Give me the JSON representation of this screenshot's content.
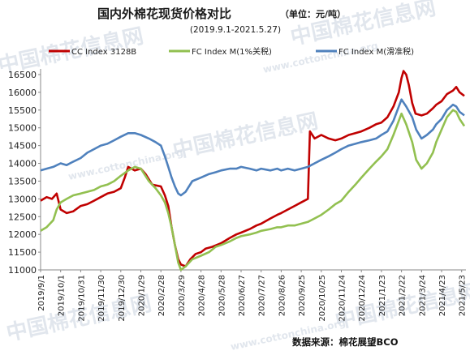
{
  "title": "国内外棉花现货价格对比",
  "unit": "（单位：元/吨）",
  "subtitle": "(2019.9.1-2021.5.27)",
  "source": "数据来源：棉花展望BCO",
  "watermark": {
    "brand": "中国棉花信息网",
    "url": "www.cottonchina.org"
  },
  "chart_data": {
    "type": "line",
    "title": "国内外棉花现货价格对比",
    "subtitle": "(2019.9.1-2021.5.27)",
    "ylim": [
      11000,
      16500
    ],
    "yticks": [
      11000,
      11500,
      12000,
      12500,
      13000,
      13500,
      14000,
      14500,
      15000,
      15500,
      16000,
      16500
    ],
    "x_tick_labels": [
      "2019/9/1",
      "2019/10/1",
      "2019/10/31",
      "2019/11/30",
      "2019/12/30",
      "2020/1/29",
      "2020/2/28",
      "2020/3/29",
      "2020/4/28",
      "2020/5/28",
      "2020/6/27",
      "2020/7/27",
      "2020/8/26",
      "2020/9/25",
      "2020/10/25",
      "2020/11/24",
      "2020/12/24",
      "2021/1/23",
      "2021/2/22",
      "2021/3/24",
      "2021/4/23",
      "2021/5/23"
    ],
    "grid": false,
    "legend_position": "top",
    "series": [
      {
        "name": "CC Index 3128B",
        "color": "#c00000",
        "points": [
          [
            "2019-09-01",
            12950
          ],
          [
            "2019-09-10",
            13050
          ],
          [
            "2019-09-18",
            13000
          ],
          [
            "2019-09-25",
            13150
          ],
          [
            "2019-10-01",
            12700
          ],
          [
            "2019-10-10",
            12600
          ],
          [
            "2019-10-20",
            12650
          ],
          [
            "2019-10-31",
            12800
          ],
          [
            "2019-11-10",
            12850
          ],
          [
            "2019-11-20",
            12950
          ],
          [
            "2019-11-30",
            13050
          ],
          [
            "2019-12-10",
            13150
          ],
          [
            "2019-12-20",
            13200
          ],
          [
            "2019-12-30",
            13300
          ],
          [
            "2020-01-05",
            13600
          ],
          [
            "2020-01-10",
            13900
          ],
          [
            "2020-01-15",
            13850
          ],
          [
            "2020-01-20",
            13800
          ],
          [
            "2020-01-29",
            13850
          ],
          [
            "2020-02-05",
            13700
          ],
          [
            "2020-02-15",
            13400
          ],
          [
            "2020-02-28",
            13350
          ],
          [
            "2020-03-05",
            13100
          ],
          [
            "2020-03-10",
            12800
          ],
          [
            "2020-03-15",
            12200
          ],
          [
            "2020-03-20",
            11700
          ],
          [
            "2020-03-25",
            11300
          ],
          [
            "2020-03-29",
            11150
          ],
          [
            "2020-04-05",
            11100
          ],
          [
            "2020-04-12",
            11300
          ],
          [
            "2020-04-20",
            11450
          ],
          [
            "2020-04-28",
            11500
          ],
          [
            "2020-05-05",
            11600
          ],
          [
            "2020-05-15",
            11650
          ],
          [
            "2020-05-28",
            11750
          ],
          [
            "2020-06-10",
            11900
          ],
          [
            "2020-06-20",
            12000
          ],
          [
            "2020-06-27",
            12050
          ],
          [
            "2020-07-10",
            12150
          ],
          [
            "2020-07-20",
            12250
          ],
          [
            "2020-07-27",
            12300
          ],
          [
            "2020-08-10",
            12450
          ],
          [
            "2020-08-20",
            12550
          ],
          [
            "2020-08-26",
            12600
          ],
          [
            "2020-09-05",
            12700
          ],
          [
            "2020-09-15",
            12800
          ],
          [
            "2020-09-25",
            12900
          ],
          [
            "2020-10-05",
            13000
          ],
          [
            "2020-10-08",
            14900
          ],
          [
            "2020-10-15",
            14700
          ],
          [
            "2020-10-25",
            14800
          ],
          [
            "2020-11-05",
            14700
          ],
          [
            "2020-11-15",
            14650
          ],
          [
            "2020-11-24",
            14700
          ],
          [
            "2020-12-05",
            14800
          ],
          [
            "2020-12-15",
            14850
          ],
          [
            "2020-12-24",
            14900
          ],
          [
            "2021-01-05",
            15000
          ],
          [
            "2021-01-15",
            15100
          ],
          [
            "2021-01-23",
            15150
          ],
          [
            "2021-02-01",
            15300
          ],
          [
            "2021-02-10",
            15600
          ],
          [
            "2021-02-18",
            16000
          ],
          [
            "2021-02-22",
            16400
          ],
          [
            "2021-02-25",
            16600
          ],
          [
            "2021-03-01",
            16500
          ],
          [
            "2021-03-05",
            16200
          ],
          [
            "2021-03-10",
            15700
          ],
          [
            "2021-03-15",
            15400
          ],
          [
            "2021-03-24",
            15350
          ],
          [
            "2021-04-01",
            15400
          ],
          [
            "2021-04-10",
            15550
          ],
          [
            "2021-04-15",
            15650
          ],
          [
            "2021-04-23",
            15750
          ],
          [
            "2021-05-01",
            15950
          ],
          [
            "2021-05-10",
            16050
          ],
          [
            "2021-05-15",
            16150
          ],
          [
            "2021-05-20",
            16000
          ],
          [
            "2021-05-27",
            15900
          ]
        ]
      },
      {
        "name": "FC Index M(1%关税)",
        "color": "#92c050",
        "points": [
          [
            "2019-09-01",
            12100
          ],
          [
            "2019-09-10",
            12200
          ],
          [
            "2019-09-20",
            12400
          ],
          [
            "2019-09-25",
            12700
          ],
          [
            "2019-10-01",
            12900
          ],
          [
            "2019-10-10",
            13000
          ],
          [
            "2019-10-20",
            13100
          ],
          [
            "2019-10-31",
            13150
          ],
          [
            "2019-11-10",
            13200
          ],
          [
            "2019-11-20",
            13250
          ],
          [
            "2019-11-30",
            13350
          ],
          [
            "2019-12-10",
            13400
          ],
          [
            "2019-12-20",
            13500
          ],
          [
            "2019-12-30",
            13650
          ],
          [
            "2020-01-10",
            13800
          ],
          [
            "2020-01-20",
            13900
          ],
          [
            "2020-01-29",
            13850
          ],
          [
            "2020-02-10",
            13500
          ],
          [
            "2020-02-20",
            13300
          ],
          [
            "2020-02-28",
            13100
          ],
          [
            "2020-03-05",
            12900
          ],
          [
            "2020-03-10",
            12600
          ],
          [
            "2020-03-15",
            12200
          ],
          [
            "2020-03-20",
            11700
          ],
          [
            "2020-03-25",
            11200
          ],
          [
            "2020-03-29",
            11000
          ],
          [
            "2020-04-05",
            11100
          ],
          [
            "2020-04-15",
            11300
          ],
          [
            "2020-04-28",
            11400
          ],
          [
            "2020-05-10",
            11500
          ],
          [
            "2020-05-20",
            11650
          ],
          [
            "2020-05-28",
            11700
          ],
          [
            "2020-06-10",
            11800
          ],
          [
            "2020-06-20",
            11900
          ],
          [
            "2020-06-27",
            11950
          ],
          [
            "2020-07-10",
            12000
          ],
          [
            "2020-07-20",
            12050
          ],
          [
            "2020-07-27",
            12100
          ],
          [
            "2020-08-10",
            12150
          ],
          [
            "2020-08-20",
            12200
          ],
          [
            "2020-08-26",
            12200
          ],
          [
            "2020-09-05",
            12250
          ],
          [
            "2020-09-15",
            12250
          ],
          [
            "2020-09-25",
            12300
          ],
          [
            "2020-10-05",
            12350
          ],
          [
            "2020-10-15",
            12450
          ],
          [
            "2020-10-25",
            12550
          ],
          [
            "2020-11-05",
            12700
          ],
          [
            "2020-11-15",
            12850
          ],
          [
            "2020-11-24",
            12950
          ],
          [
            "2020-12-05",
            13200
          ],
          [
            "2020-12-15",
            13400
          ],
          [
            "2020-12-24",
            13600
          ],
          [
            "2021-01-05",
            13850
          ],
          [
            "2021-01-15",
            14050
          ],
          [
            "2021-01-23",
            14200
          ],
          [
            "2021-02-01",
            14400
          ],
          [
            "2021-02-10",
            14800
          ],
          [
            "2021-02-18",
            15200
          ],
          [
            "2021-02-22",
            15400
          ],
          [
            "2021-03-01",
            15100
          ],
          [
            "2021-03-10",
            14600
          ],
          [
            "2021-03-16",
            14100
          ],
          [
            "2021-03-24",
            13850
          ],
          [
            "2021-04-01",
            14000
          ],
          [
            "2021-04-10",
            14300
          ],
          [
            "2021-04-15",
            14600
          ],
          [
            "2021-04-23",
            14950
          ],
          [
            "2021-05-01",
            15300
          ],
          [
            "2021-05-10",
            15500
          ],
          [
            "2021-05-15",
            15450
          ],
          [
            "2021-05-20",
            15250
          ],
          [
            "2021-05-27",
            15050
          ]
        ]
      },
      {
        "name": "FC Index M(滑准税)",
        "color": "#4f81bd",
        "points": [
          [
            "2019-09-01",
            13800
          ],
          [
            "2019-09-10",
            13850
          ],
          [
            "2019-09-20",
            13900
          ],
          [
            "2019-10-01",
            14000
          ],
          [
            "2019-10-10",
            13950
          ],
          [
            "2019-10-20",
            14050
          ],
          [
            "2019-10-31",
            14150
          ],
          [
            "2019-11-10",
            14300
          ],
          [
            "2019-11-20",
            14400
          ],
          [
            "2019-11-30",
            14500
          ],
          [
            "2019-12-10",
            14550
          ],
          [
            "2019-12-20",
            14650
          ],
          [
            "2019-12-30",
            14750
          ],
          [
            "2020-01-10",
            14850
          ],
          [
            "2020-01-20",
            14850
          ],
          [
            "2020-01-29",
            14800
          ],
          [
            "2020-02-10",
            14700
          ],
          [
            "2020-02-20",
            14600
          ],
          [
            "2020-02-28",
            14500
          ],
          [
            "2020-03-05",
            14200
          ],
          [
            "2020-03-10",
            13900
          ],
          [
            "2020-03-15",
            13600
          ],
          [
            "2020-03-20",
            13350
          ],
          [
            "2020-03-25",
            13150
          ],
          [
            "2020-03-29",
            13100
          ],
          [
            "2020-04-05",
            13200
          ],
          [
            "2020-04-15",
            13500
          ],
          [
            "2020-04-28",
            13600
          ],
          [
            "2020-05-10",
            13700
          ],
          [
            "2020-05-20",
            13750
          ],
          [
            "2020-05-28",
            13800
          ],
          [
            "2020-06-10",
            13850
          ],
          [
            "2020-06-20",
            13850
          ],
          [
            "2020-06-27",
            13900
          ],
          [
            "2020-07-10",
            13850
          ],
          [
            "2020-07-20",
            13800
          ],
          [
            "2020-07-27",
            13850
          ],
          [
            "2020-08-10",
            13800
          ],
          [
            "2020-08-20",
            13850
          ],
          [
            "2020-08-26",
            13800
          ],
          [
            "2020-09-05",
            13850
          ],
          [
            "2020-09-15",
            13800
          ],
          [
            "2020-09-25",
            13850
          ],
          [
            "2020-10-05",
            13900
          ],
          [
            "2020-10-15",
            14000
          ],
          [
            "2020-10-25",
            14100
          ],
          [
            "2020-11-05",
            14200
          ],
          [
            "2020-11-15",
            14300
          ],
          [
            "2020-11-24",
            14400
          ],
          [
            "2020-12-05",
            14500
          ],
          [
            "2020-12-15",
            14550
          ],
          [
            "2020-12-24",
            14600
          ],
          [
            "2021-01-05",
            14650
          ],
          [
            "2021-01-15",
            14700
          ],
          [
            "2021-01-23",
            14800
          ],
          [
            "2021-02-01",
            14900
          ],
          [
            "2021-02-10",
            15200
          ],
          [
            "2021-02-18",
            15600
          ],
          [
            "2021-02-22",
            15800
          ],
          [
            "2021-03-01",
            15600
          ],
          [
            "2021-03-10",
            15300
          ],
          [
            "2021-03-16",
            14950
          ],
          [
            "2021-03-24",
            14700
          ],
          [
            "2021-04-01",
            14800
          ],
          [
            "2021-04-10",
            14950
          ],
          [
            "2021-04-15",
            15100
          ],
          [
            "2021-04-23",
            15250
          ],
          [
            "2021-05-01",
            15500
          ],
          [
            "2021-05-10",
            15650
          ],
          [
            "2021-05-15",
            15600
          ],
          [
            "2021-05-20",
            15450
          ],
          [
            "2021-05-27",
            15350
          ]
        ]
      }
    ]
  }
}
